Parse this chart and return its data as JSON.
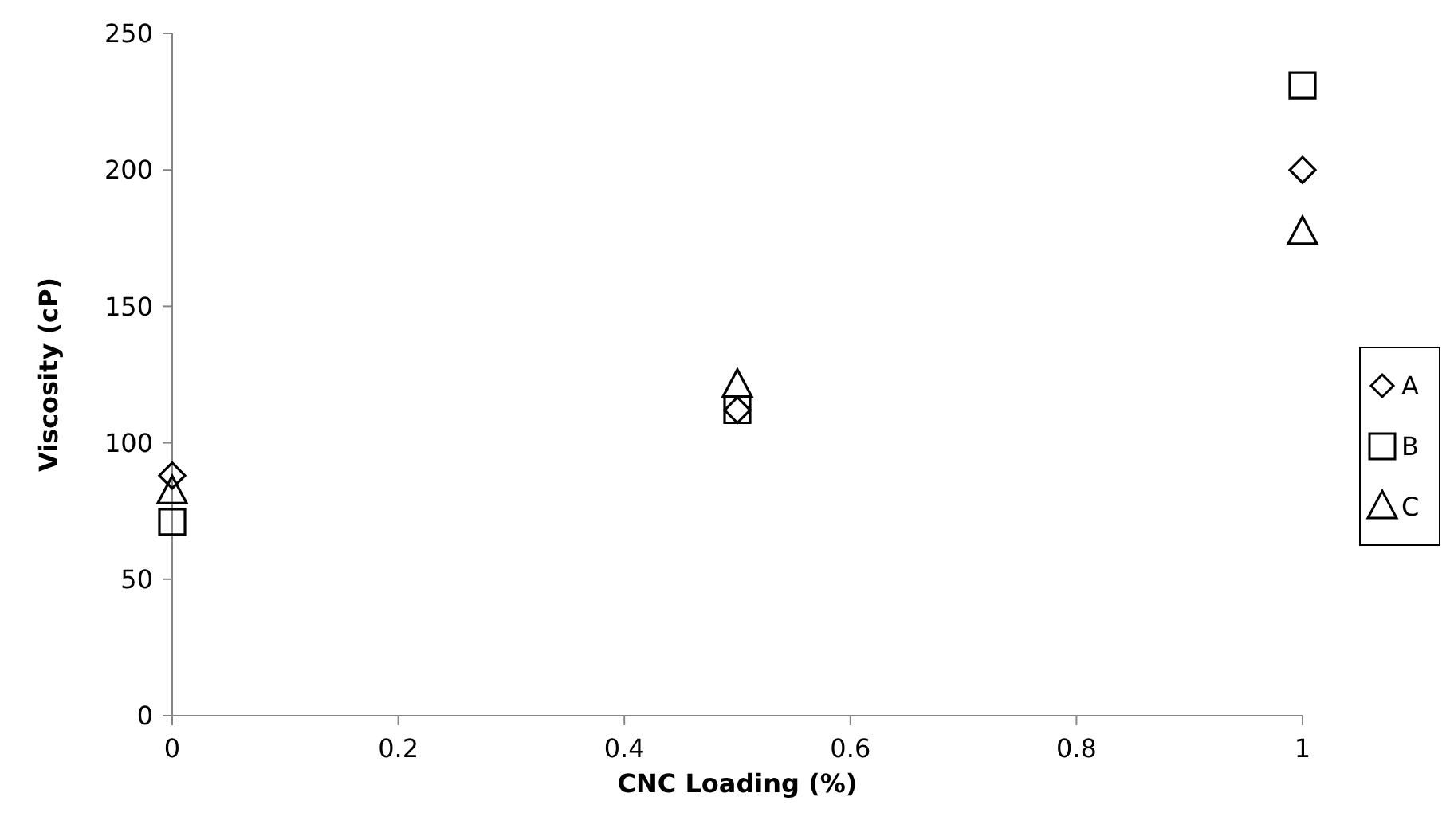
{
  "chart_data": {
    "type": "scatter",
    "xlabel": "CNC Loading (%)",
    "ylabel": "Viscosity (cP)",
    "x": [
      0,
      0.5,
      1
    ],
    "xlim": [
      0,
      1
    ],
    "xticks": [
      0,
      0.2,
      0.4,
      0.6,
      0.8,
      1
    ],
    "ylim": [
      0,
      250
    ],
    "yticks": [
      0,
      50,
      100,
      150,
      200,
      250
    ],
    "grid": false,
    "legend": "right",
    "series": [
      {
        "name": "A",
        "color": "#000000",
        "marker": "diamond",
        "values": [
          88,
          112,
          200
        ]
      },
      {
        "name": "B",
        "color": "#000000",
        "marker": "square",
        "values": [
          71,
          112,
          231
        ]
      },
      {
        "name": "C",
        "color": "#000000",
        "marker": "triangle",
        "values": [
          82,
          121,
          177
        ]
      }
    ]
  }
}
